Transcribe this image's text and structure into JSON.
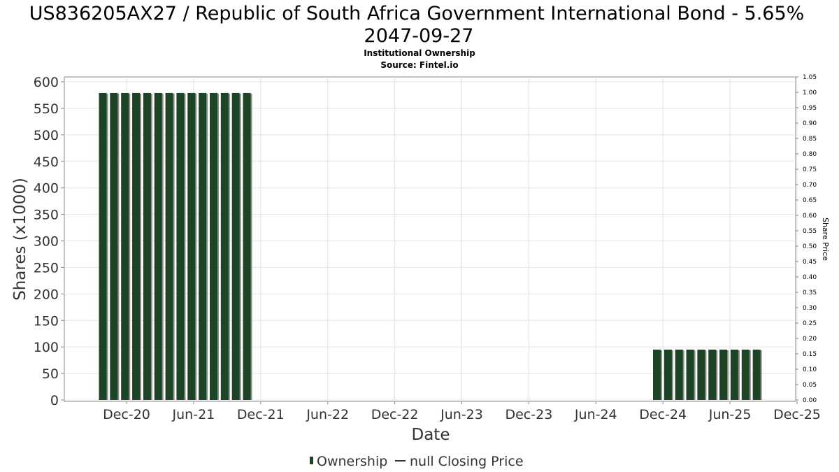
{
  "chart_data": {
    "type": "bar",
    "title_lines": [
      "US836205AX27 / Republic of South Africa Government International Bond - 5.65%",
      "2047-09-27"
    ],
    "subtitle_lines": [
      "Institutional Ownership",
      "Source: Fintel.io"
    ],
    "xlabel": "Date",
    "ylabel": "Shares (x1000)",
    "y2label": "Share Price",
    "ylim": [
      0,
      600
    ],
    "y_ticks": [
      "0",
      "50",
      "100",
      "150",
      "200",
      "250",
      "300",
      "350",
      "400",
      "450",
      "500",
      "550",
      "600"
    ],
    "y2lim": [
      0,
      1.05
    ],
    "y2_ticks": [
      "0.00",
      "0.05",
      "0.10",
      "0.15",
      "0.20",
      "0.25",
      "0.30",
      "0.35",
      "0.40",
      "0.45",
      "0.50",
      "0.55",
      "0.60",
      "0.65",
      "0.70",
      "0.75",
      "0.80",
      "0.85",
      "0.90",
      "0.95",
      "1.00",
      "1.05"
    ],
    "x_ticks": [
      "Dec-20",
      "Jun-21",
      "Dec-21",
      "Jun-22",
      "Dec-22",
      "Jun-23",
      "Dec-23",
      "Jun-24",
      "Dec-24",
      "Jun-25",
      "Dec-25"
    ],
    "grid": true,
    "legend_position": "bottom",
    "legend": [
      {
        "name": "Ownership",
        "kind": "bar"
      },
      {
        "name": "null Closing Price",
        "kind": "line"
      }
    ],
    "series": [
      {
        "name": "Ownership",
        "color": "#1c4425",
        "values": [
          579,
          579,
          579,
          579,
          579,
          579,
          579,
          579,
          579,
          579,
          579,
          579,
          579,
          579,
          95,
          95,
          95,
          95,
          95,
          95,
          95,
          95,
          95,
          95
        ]
      }
    ],
    "bar_positions": [
      0,
      1,
      2,
      3,
      4,
      5,
      6,
      7,
      8,
      9,
      10,
      11,
      12,
      13,
      50,
      51,
      52,
      53,
      54,
      55,
      56,
      57,
      58,
      59
    ]
  }
}
